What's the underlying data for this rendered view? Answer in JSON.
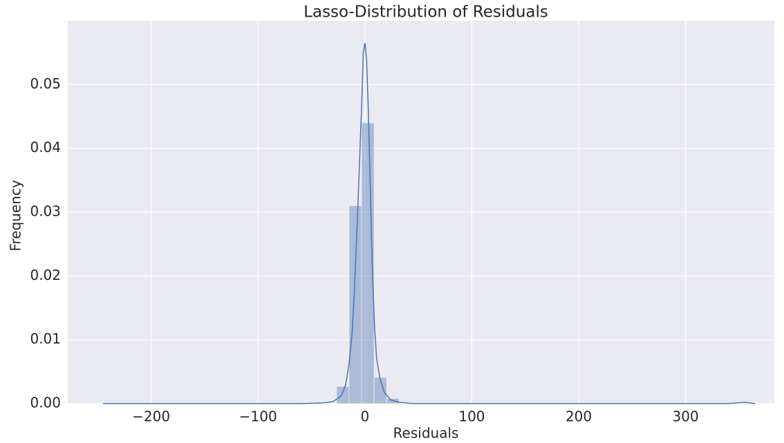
{
  "chart_data": {
    "type": "histogram",
    "title": "Lasso-Distribution of Residuals",
    "x_label": "Residuals",
    "y_label": "Frequency",
    "bins": [
      -26.5,
      -14.8,
      -3.1,
      8.6,
      20.3,
      32.0
    ],
    "values": [
      0.0027,
      0.031,
      0.044,
      0.0041,
      0.0008
    ],
    "color": "#4c72b0",
    "kde": {
      "x": [
        -245,
        -150,
        -60,
        -40,
        -30,
        -22,
        -18,
        -15,
        -12,
        -10,
        -7,
        -5,
        -3,
        -1.5,
        0,
        1.5,
        3,
        5,
        7,
        9,
        11,
        14,
        18,
        24,
        32,
        45,
        80,
        200,
        340,
        355,
        365
      ],
      "values": [
        0,
        0,
        0,
        0.0001,
        0.0003,
        0.0012,
        0.003,
        0.006,
        0.011,
        0.017,
        0.029,
        0.038,
        0.047,
        0.055,
        0.0565,
        0.054,
        0.047,
        0.034,
        0.021,
        0.012,
        0.007,
        0.004,
        0.0018,
        0.0006,
        0.0002,
        0,
        0,
        0,
        0,
        0.0002,
        0
      ]
    },
    "xlim": [
      -278,
      383
    ],
    "ylim": [
      0,
      0.06
    ],
    "xticks": [
      {
        "value": -200,
        "label": "−200"
      },
      {
        "value": -100,
        "label": "−100"
      },
      0,
      100,
      200,
      300
    ],
    "yticks": [
      {
        "value": 0,
        "label": "0.00"
      },
      {
        "value": 0.01,
        "label": "0.01"
      },
      {
        "value": 0.02,
        "label": "0.02"
      },
      {
        "value": 0.03,
        "label": "0.03"
      },
      {
        "value": 0.04,
        "label": "0.04"
      },
      {
        "value": 0.05,
        "label": "0.05"
      }
    ],
    "grid": true
  }
}
